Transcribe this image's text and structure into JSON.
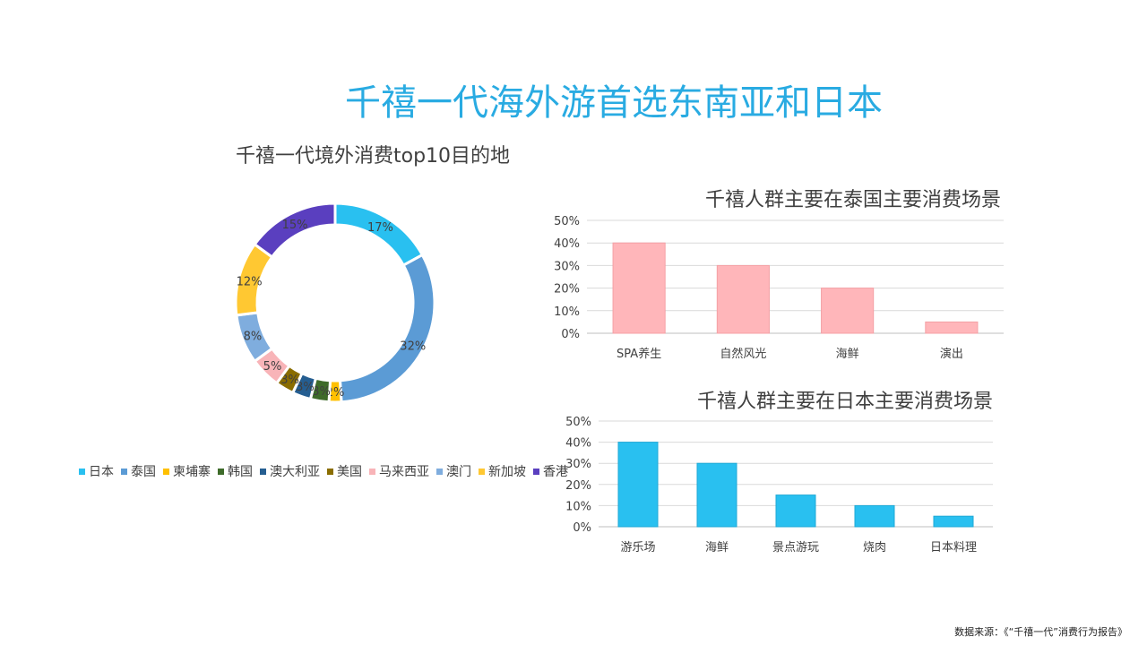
{
  "title": "千禧一代海外游首选东南亚和日本",
  "source": "数据来源：《“千禧一代”消费行为报告》",
  "chart_data": [
    {
      "type": "pie",
      "variant": "donut",
      "title": "千禧一代境外消费top10目的地",
      "legend_position": "bottom",
      "categories": [
        "日本",
        "泰国",
        "柬埔寨",
        "韩国",
        "澳大利亚",
        "美国",
        "马来西亚",
        "澳门",
        "新加坡",
        "香港"
      ],
      "values": [
        17,
        32,
        2,
        3,
        3,
        3,
        5,
        8,
        12,
        15
      ],
      "labels": [
        "17%",
        "32%",
        "2%",
        "3%",
        "3%",
        "3%",
        "5%",
        "8%",
        "12%",
        "15%"
      ],
      "colors": [
        "#29c0f0",
        "#5b9bd5",
        "#ffc000",
        "#3e6b2a",
        "#255e91",
        "#8a6d00",
        "#f8b4b8",
        "#7fadde",
        "#ffc832",
        "#5a3fbf"
      ]
    },
    {
      "type": "bar",
      "title": "千禧人群主要在泰国主要消费场景",
      "categories": [
        "SPA养生",
        "自然风光",
        "海鲜",
        "演出"
      ],
      "values": [
        40,
        30,
        20,
        5
      ],
      "ylim": [
        0,
        50
      ],
      "yticks": [
        "0%",
        "10%",
        "20%",
        "30%",
        "40%",
        "50%"
      ],
      "grid": true,
      "color": "#ffb6ba"
    },
    {
      "type": "bar",
      "title": "千禧人群主要在日本主要消费场景",
      "categories": [
        "游乐场",
        "海鲜",
        "景点游玩",
        "烧肉",
        "日本料理"
      ],
      "values": [
        40,
        30,
        15,
        10,
        5
      ],
      "ylim": [
        0,
        50
      ],
      "yticks": [
        "0%",
        "10%",
        "20%",
        "30%",
        "40%",
        "50%"
      ],
      "grid": true,
      "color": "#29c0f0"
    }
  ]
}
